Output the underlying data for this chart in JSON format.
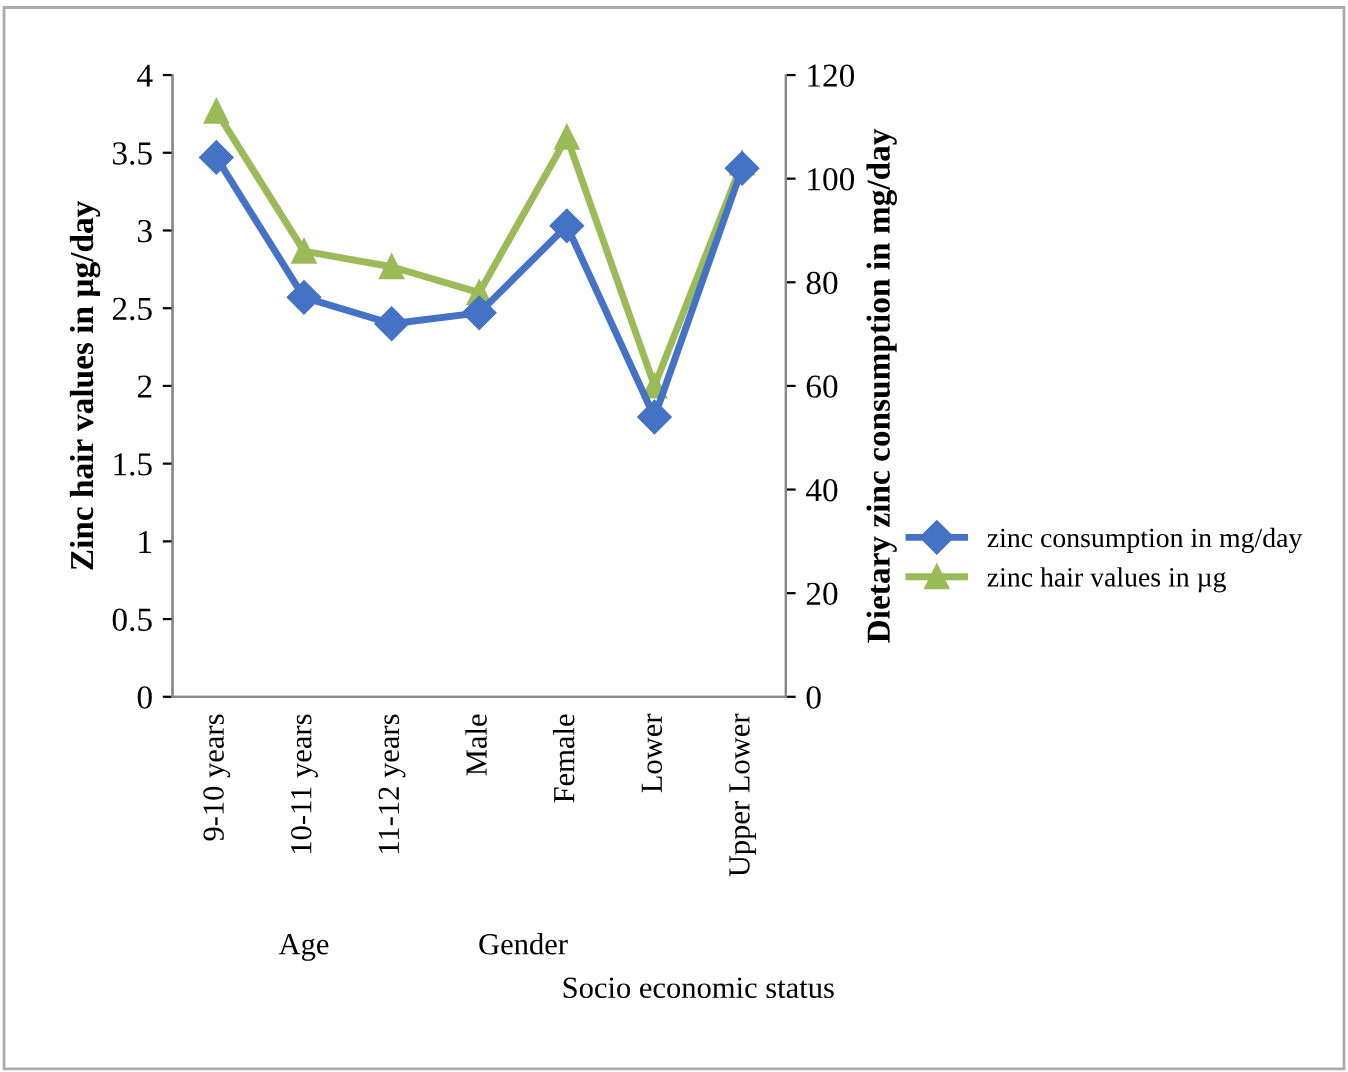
{
  "chart_data": {
    "type": "line",
    "categories": [
      "9-10 years",
      "10-11 years",
      "11-12 years",
      "Male",
      "Female",
      "Lower",
      "Upper Lower"
    ],
    "series": [
      {
        "name": "zinc consumption in mg/day",
        "color": "#4472c4",
        "marker": "diamond",
        "values": [
          3.47,
          2.57,
          2.4,
          2.47,
          3.03,
          1.8,
          3.4
        ]
      },
      {
        "name": "zinc hair values in µg",
        "color": "#9bbb59",
        "marker": "triangle",
        "axis": "y2",
        "values": [
          113,
          86,
          83,
          78,
          108,
          60,
          103
        ]
      }
    ],
    "ylabel": "Zinc hair values in µg/day",
    "y2label": "Dietary zinc consumption in mg/day",
    "ylim": [
      0,
      4
    ],
    "yticks": [
      0,
      0.5,
      1,
      1.5,
      2,
      2.5,
      3,
      3.5,
      4
    ],
    "y2lim": [
      0,
      120
    ],
    "y2ticks": [
      0,
      20,
      40,
      60,
      80,
      100,
      120
    ],
    "annotations": [
      "Age",
      "Gender",
      "Socio economic status"
    ],
    "grid": false,
    "legend": "right",
    "line_style": "solid"
  }
}
